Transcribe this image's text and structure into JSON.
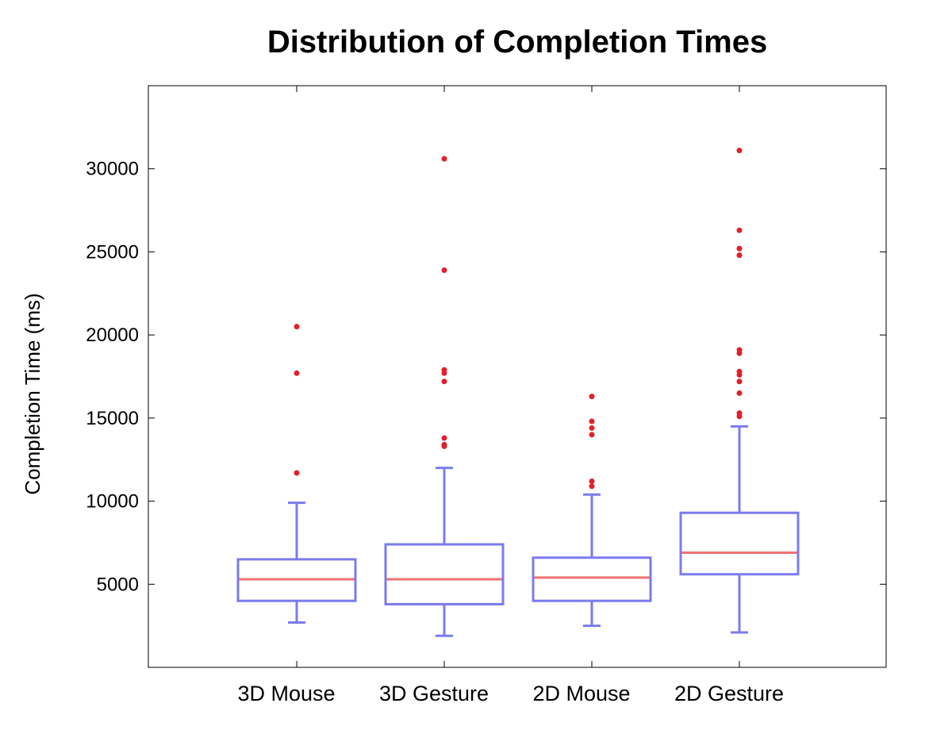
{
  "chart_data": {
    "type": "box",
    "title": "Distribution of Completion Times",
    "xlabel": "",
    "ylabel": "Completion Time (ms)",
    "ylim": [
      0,
      35000
    ],
    "yticks": [
      5000,
      10000,
      15000,
      20000,
      25000,
      30000
    ],
    "ytick_labels": [
      "5000",
      "10000",
      "15000",
      "20000",
      "25000",
      "30000"
    ],
    "categories": [
      "3D Mouse",
      "3D Gesture",
      "2D Mouse",
      "2D Gesture"
    ],
    "grid": false,
    "colors": {
      "box": "#7b7bee",
      "median": "#f07070",
      "outlier": "#e0202a",
      "axis": "#000000"
    },
    "boxes": [
      {
        "name": "3D Mouse",
        "whisker_low": 2700,
        "q1": 4000,
        "median": 5300,
        "q3": 6500,
        "whisker_high": 9900,
        "outliers": [
          11700,
          17700,
          20500
        ]
      },
      {
        "name": "3D Gesture",
        "whisker_low": 1900,
        "q1": 3800,
        "median": 5300,
        "q3": 7400,
        "whisker_high": 12000,
        "outliers": [
          13300,
          13400,
          13800,
          17200,
          17700,
          17900,
          23900,
          30600
        ]
      },
      {
        "name": "2D Mouse",
        "whisker_low": 2500,
        "q1": 4000,
        "median": 5400,
        "q3": 6600,
        "whisker_high": 10400,
        "outliers": [
          10900,
          11200,
          14000,
          14400,
          14800,
          16300
        ]
      },
      {
        "name": "2D Gesture",
        "whisker_low": 2100,
        "q1": 5600,
        "median": 6900,
        "q3": 9300,
        "whisker_high": 14500,
        "outliers": [
          15100,
          15300,
          16500,
          17200,
          17600,
          17800,
          18900,
          19100,
          24800,
          25200,
          26300,
          31100
        ]
      }
    ]
  }
}
